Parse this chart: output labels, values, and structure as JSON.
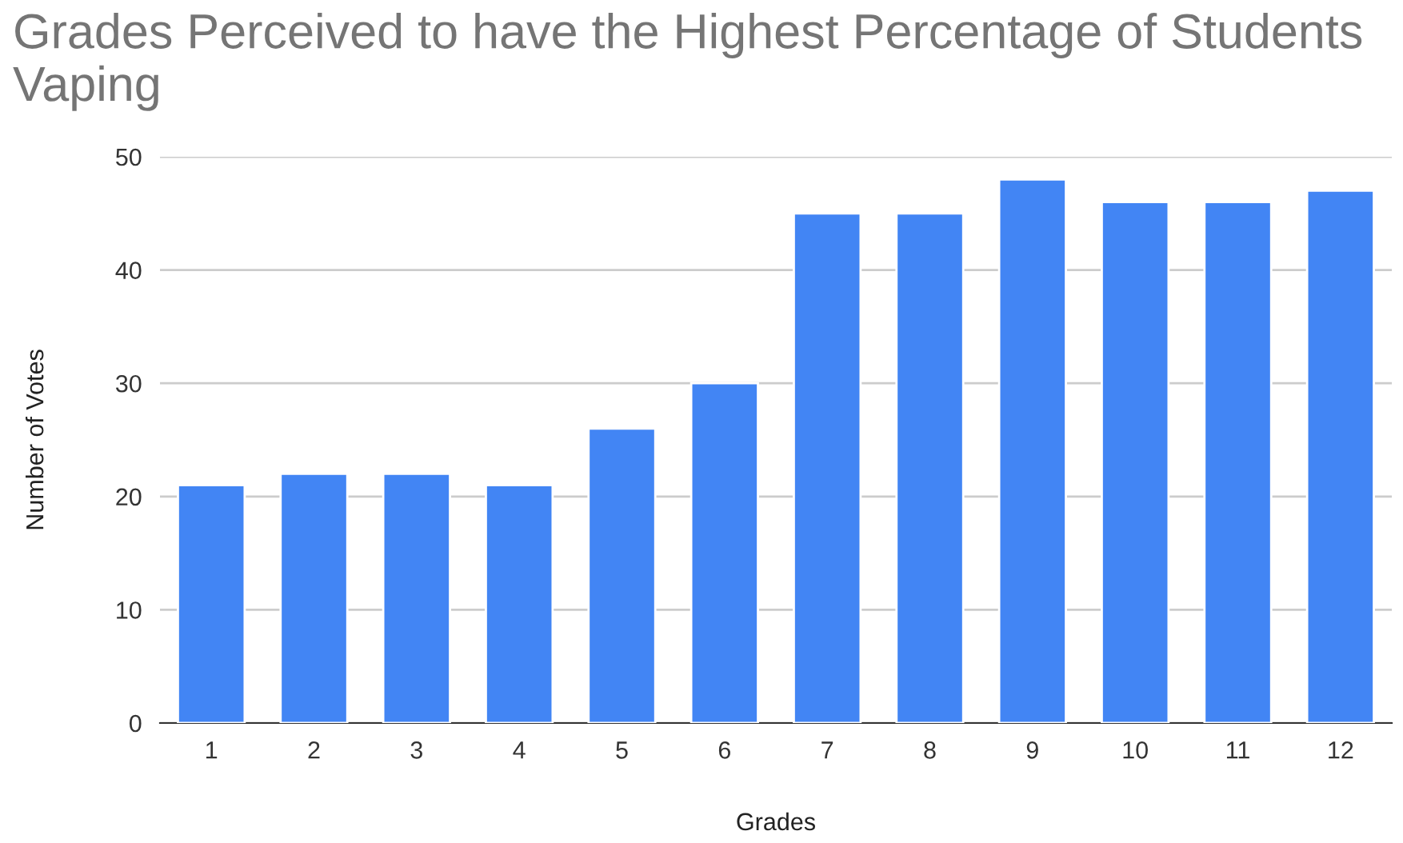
{
  "chart_data": {
    "type": "bar",
    "title": "Grades Perceived to have the Highest Percentage of Students Vaping",
    "xlabel": "Grades",
    "ylabel": "Number of Votes",
    "categories": [
      "1",
      "2",
      "3",
      "4",
      "5",
      "6",
      "7",
      "8",
      "9",
      "10",
      "11",
      "12"
    ],
    "values": [
      21,
      22,
      22,
      21,
      26,
      30,
      45,
      45,
      48,
      46,
      46,
      47
    ],
    "color": "#4285f4",
    "ylim": [
      0,
      50
    ],
    "yticks": [
      0,
      10,
      20,
      30,
      40,
      50
    ],
    "grid": "y"
  }
}
